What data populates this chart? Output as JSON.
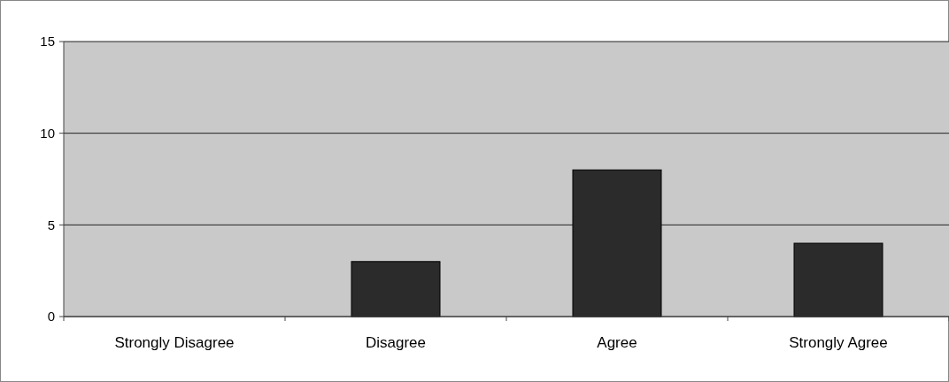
{
  "chart_data": {
    "type": "bar",
    "categories": [
      "Strongly Disagree",
      "Disagree",
      "Agree",
      "Strongly Agree"
    ],
    "values": [
      0,
      3,
      8,
      4
    ],
    "color": "#2b2b2b",
    "ylim": [
      0,
      15
    ],
    "yticks": [
      0,
      5,
      10,
      15
    ],
    "grid": "y"
  }
}
